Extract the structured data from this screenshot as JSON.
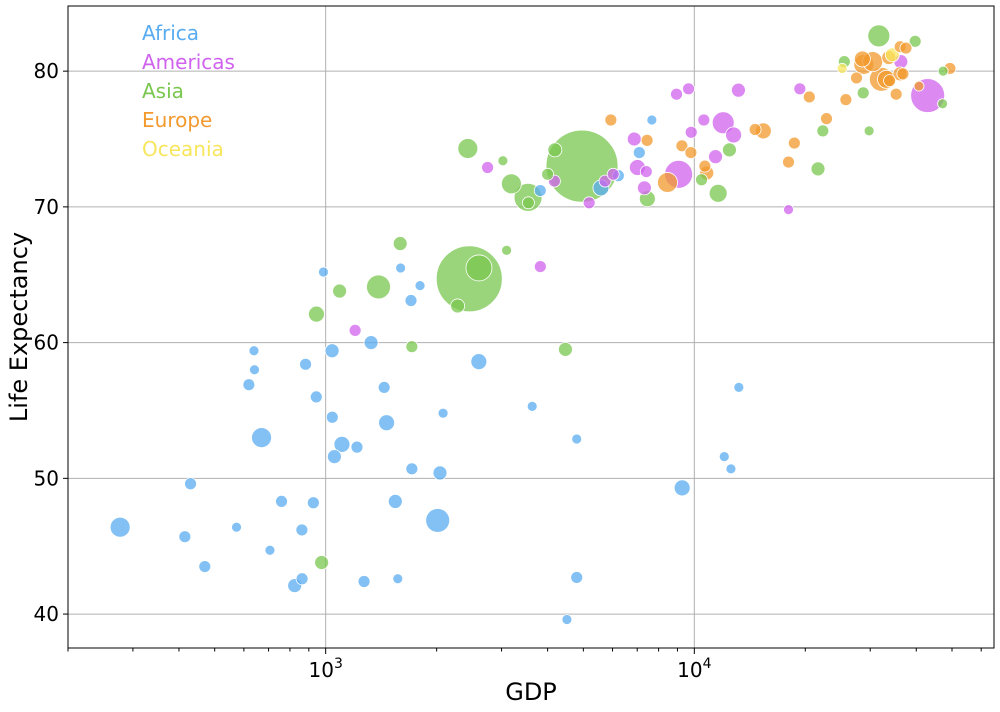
{
  "chart_data": {
    "type": "scatter",
    "title": "",
    "xlabel": "GDP",
    "ylabel": "Life Expectancy",
    "xscale": "log",
    "xlim": [
      200,
      65000
    ],
    "ylim": [
      37.5,
      84.8
    ],
    "grid": true,
    "legend_placement": "top-left",
    "x_ticks": [
      {
        "value": 1000,
        "base": "10",
        "exp": "3"
      },
      {
        "value": 10000,
        "base": "10",
        "exp": "4"
      }
    ],
    "y_ticks": [
      {
        "value": 40,
        "label": "40"
      },
      {
        "value": 50,
        "label": "50"
      },
      {
        "value": 60,
        "label": "60"
      },
      {
        "value": 70,
        "label": "70"
      },
      {
        "value": 80,
        "label": "80"
      }
    ],
    "series": [
      {
        "name": "Africa",
        "color": "#5aacf0",
        "points": [
          [
            277,
            46.4,
            10
          ],
          [
            415,
            45.7,
            6
          ],
          [
            430,
            49.6,
            6
          ],
          [
            470,
            43.5,
            6
          ],
          [
            573,
            46.4,
            5
          ],
          [
            619,
            56.9,
            6
          ],
          [
            641,
            58.0,
            5
          ],
          [
            706,
            44.7,
            5
          ],
          [
            759,
            48.3,
            6
          ],
          [
            670,
            53.0,
            10
          ],
          [
            639,
            59.4,
            5
          ],
          [
            824,
            42.1,
            7
          ],
          [
            863,
            42.6,
            6
          ],
          [
            862,
            46.2,
            6
          ],
          [
            882,
            58.4,
            6
          ],
          [
            926,
            48.2,
            6
          ],
          [
            943,
            56.0,
            6
          ],
          [
            986,
            65.2,
            5
          ],
          [
            1041,
            59.4,
            7
          ],
          [
            1042,
            54.5,
            6
          ],
          [
            1056,
            51.6,
            7
          ],
          [
            1107,
            52.5,
            8
          ],
          [
            1216,
            52.3,
            6
          ],
          [
            1271,
            42.4,
            6
          ],
          [
            1328,
            60.0,
            7
          ],
          [
            1441,
            56.7,
            6
          ],
          [
            1463,
            54.1,
            8
          ],
          [
            1545,
            48.3,
            7
          ],
          [
            1569,
            42.6,
            5
          ],
          [
            1597,
            65.5,
            5
          ],
          [
            1704,
            63.1,
            6
          ],
          [
            1713,
            50.7,
            6
          ],
          [
            1803,
            64.2,
            5
          ],
          [
            2013,
            46.9,
            12
          ],
          [
            2042,
            50.4,
            7
          ],
          [
            2082,
            54.8,
            5
          ],
          [
            2603,
            58.6,
            8
          ],
          [
            3633,
            55.3,
            5
          ],
          [
            3820,
            71.2,
            6
          ],
          [
            4513,
            39.6,
            5
          ],
          [
            4797,
            52.9,
            5
          ],
          [
            4797,
            42.7,
            6
          ],
          [
            5581,
            71.4,
            8
          ],
          [
            6223,
            72.3,
            6
          ],
          [
            7092,
            74.0,
            6
          ],
          [
            7670,
            76.4,
            5
          ],
          [
            9270,
            49.3,
            8
          ],
          [
            12057,
            51.6,
            5
          ],
          [
            12570,
            50.7,
            5
          ],
          [
            13206,
            56.7,
            5
          ]
        ]
      },
      {
        "name": "Americas",
        "color": "#d063ee",
        "points": [
          [
            1202,
            60.9,
            6
          ],
          [
            2749,
            72.9,
            6
          ],
          [
            3822,
            65.6,
            6
          ],
          [
            4173,
            71.9,
            6
          ],
          [
            5186,
            70.3,
            6
          ],
          [
            5728,
            71.9,
            6
          ],
          [
            6025,
            72.4,
            6
          ],
          [
            6873,
            75.0,
            7
          ],
          [
            7008,
            72.9,
            8
          ],
          [
            7321,
            71.4,
            7
          ],
          [
            7409,
            72.6,
            6
          ],
          [
            8948,
            78.3,
            6
          ],
          [
            9065,
            72.4,
            14
          ],
          [
            9645,
            78.7,
            6
          ],
          [
            9809,
            75.5,
            6
          ],
          [
            10611,
            76.4,
            6
          ],
          [
            11416,
            73.7,
            7
          ],
          [
            11978,
            76.2,
            11
          ],
          [
            12779,
            75.3,
            8
          ],
          [
            13172,
            78.6,
            7
          ],
          [
            18009,
            69.8,
            5
          ],
          [
            19328,
            78.7,
            6
          ],
          [
            36319,
            80.7,
            7
          ],
          [
            42952,
            78.2,
            17
          ]
        ]
      },
      {
        "name": "Asia",
        "color": "#7ac74f",
        "points": [
          [
            944,
            62.1,
            8
          ],
          [
            975,
            43.8,
            7
          ],
          [
            1091,
            63.8,
            7
          ],
          [
            1391,
            64.1,
            12
          ],
          [
            1593,
            67.3,
            7
          ],
          [
            1713,
            59.7,
            6
          ],
          [
            2280,
            62.7,
            7
          ],
          [
            2452,
            64.7,
            33
          ],
          [
            2605,
            65.5,
            13
          ],
          [
            3025,
            73.4,
            5
          ],
          [
            3096,
            66.8,
            5
          ],
          [
            3190,
            71.7,
            10
          ],
          [
            3540,
            70.7,
            14
          ],
          [
            3548,
            70.3,
            6
          ],
          [
            4185,
            74.2,
            7
          ],
          [
            4471,
            59.5,
            7
          ],
          [
            4959,
            73.0,
            36
          ],
          [
            7458,
            70.6,
            8
          ],
          [
            10461,
            72.0,
            6
          ],
          [
            11606,
            71.0,
            9
          ],
          [
            12452,
            74.2,
            7
          ],
          [
            21655,
            72.8,
            7
          ],
          [
            22316,
            75.6,
            6
          ],
          [
            25523,
            80.7,
            6
          ],
          [
            28718,
            78.4,
            6
          ],
          [
            29796,
            75.6,
            5
          ],
          [
            31656,
            82.6,
            11
          ],
          [
            39725,
            82.2,
            6
          ],
          [
            47307,
            80.0,
            5
          ],
          [
            47143,
            77.6,
            5
          ],
          [
            2430,
            74.3,
            10
          ],
          [
            4000,
            72.4,
            6
          ]
        ]
      },
      {
        "name": "Europe",
        "color": "#f29a2e",
        "points": [
          [
            5937,
            76.4,
            6
          ],
          [
            7446,
            74.9,
            6
          ],
          [
            8458,
            71.8,
            10
          ],
          [
            9254,
            74.5,
            6
          ],
          [
            9787,
            74.0,
            6
          ],
          [
            10681,
            73.0,
            6
          ],
          [
            10808,
            72.5,
            7
          ],
          [
            14619,
            75.7,
            6
          ],
          [
            15390,
            75.6,
            8
          ],
          [
            18008,
            73.3,
            6
          ],
          [
            18679,
            74.7,
            6
          ],
          [
            20510,
            78.1,
            6
          ],
          [
            22833,
            76.5,
            6
          ],
          [
            25768,
            77.9,
            6
          ],
          [
            27538,
            79.5,
            6
          ],
          [
            28570,
            80.9,
            8
          ],
          [
            28822,
            80.5,
            10
          ],
          [
            30470,
            80.7,
            10
          ],
          [
            32170,
            79.4,
            12
          ],
          [
            33207,
            79.4,
            9
          ],
          [
            33692,
            81.0,
            7
          ],
          [
            33860,
            79.3,
            6
          ],
          [
            35278,
            78.3,
            6
          ],
          [
            36126,
            79.8,
            7
          ],
          [
            36181,
            81.8,
            6
          ],
          [
            36798,
            79.8,
            6
          ],
          [
            37506,
            81.7,
            6
          ],
          [
            40676,
            78.9,
            5
          ],
          [
            49357,
            80.2,
            6
          ]
        ]
      },
      {
        "name": "Oceania",
        "color": "#f7e65c",
        "points": [
          [
            25185,
            80.2,
            5
          ],
          [
            34435,
            81.2,
            7
          ]
        ]
      }
    ]
  }
}
